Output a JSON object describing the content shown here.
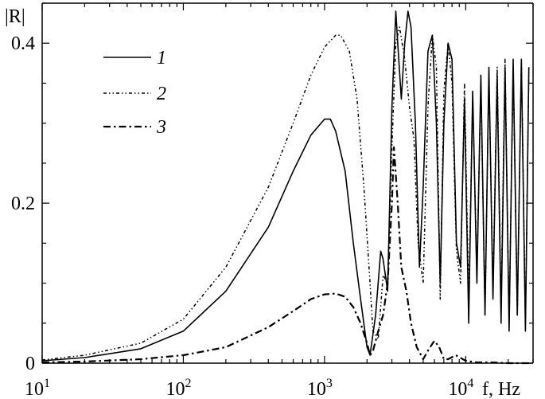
{
  "chart_data": {
    "type": "line",
    "title": "",
    "ylabel": "|R|",
    "xlabel": "f, Hz",
    "xscale": "log",
    "xlim": [
      10,
      30000
    ],
    "ylim": [
      0,
      0.45
    ],
    "grid": false,
    "legend_position": "top-left",
    "x_ticks": [
      {
        "base": "10",
        "exp": "1"
      },
      {
        "base": "10",
        "exp": "2"
      },
      {
        "base": "10",
        "exp": "3"
      },
      {
        "base": "10",
        "exp": "4"
      }
    ],
    "y_ticks": [
      "0",
      "0.2",
      "0.4"
    ],
    "series": [
      {
        "name": "1",
        "style": "solid",
        "x": [
          10,
          20,
          50,
          100,
          200,
          400,
          600,
          800,
          1000,
          1100,
          1200,
          1400,
          1600,
          1800,
          2000,
          2100,
          2300,
          2500,
          2600,
          2800,
          3000,
          3200,
          3300,
          3500,
          3700,
          3900,
          4100,
          4400,
          4700,
          5000,
          5400,
          5800,
          6200,
          6600,
          7000,
          7500,
          8000,
          8600,
          9200,
          9800,
          10500,
          11200,
          12000,
          12800,
          13700,
          14600,
          15600,
          16700,
          17800,
          19000,
          20300,
          21700,
          23200,
          24800,
          26500,
          28000
        ],
        "y": [
          0.003,
          0.007,
          0.018,
          0.04,
          0.09,
          0.17,
          0.24,
          0.285,
          0.305,
          0.305,
          0.29,
          0.24,
          0.15,
          0.08,
          0.02,
          0.01,
          0.06,
          0.14,
          0.13,
          0.09,
          0.32,
          0.44,
          0.4,
          0.33,
          0.4,
          0.44,
          0.42,
          0.3,
          0.12,
          0.22,
          0.39,
          0.41,
          0.3,
          0.1,
          0.3,
          0.4,
          0.38,
          0.15,
          0.12,
          0.33,
          0.05,
          0.34,
          0.1,
          0.36,
          0.06,
          0.37,
          0.08,
          0.36,
          0.05,
          0.37,
          0.04,
          0.38,
          0.06,
          0.38,
          0.04,
          0.37
        ]
      },
      {
        "name": "2",
        "style": "dash-dot-dot",
        "x": [
          10,
          20,
          50,
          100,
          200,
          400,
          600,
          800,
          1000,
          1200,
          1300,
          1500,
          1700,
          1900,
          2100,
          2200,
          2400,
          2600,
          2800,
          3000,
          3200,
          3400,
          3700,
          4000,
          4300,
          4600,
          5000,
          5400,
          5800,
          6200,
          6600,
          7000,
          7500,
          8000,
          8600,
          9200,
          9800,
          10500,
          11200,
          12000,
          12800,
          13700,
          14600,
          15600,
          16700,
          17800,
          19000,
          20300,
          21700,
          23200,
          24800,
          26500,
          28000
        ],
        "y": [
          0.004,
          0.01,
          0.025,
          0.055,
          0.12,
          0.22,
          0.3,
          0.36,
          0.395,
          0.41,
          0.41,
          0.39,
          0.33,
          0.22,
          0.1,
          0.04,
          0.03,
          0.11,
          0.1,
          0.27,
          0.4,
          0.42,
          0.38,
          0.32,
          0.28,
          0.15,
          0.1,
          0.32,
          0.41,
          0.37,
          0.08,
          0.34,
          0.4,
          0.35,
          0.14,
          0.1,
          0.35,
          0.08,
          0.33,
          0.12,
          0.35,
          0.06,
          0.36,
          0.09,
          0.37,
          0.07,
          0.38,
          0.05,
          0.37,
          0.06,
          0.38,
          0.05,
          0.37
        ]
      },
      {
        "name": "3",
        "style": "dash-dot",
        "x": [
          10,
          20,
          50,
          100,
          200,
          400,
          600,
          800,
          1000,
          1200,
          1400,
          1600,
          1800,
          2000,
          2100,
          2200,
          2400,
          2600,
          2800,
          3000,
          3100,
          3300,
          3500,
          3800,
          4100,
          4500,
          5000,
          5500,
          6000,
          6500,
          7000,
          7500,
          8500,
          10000,
          12000,
          15000,
          20000,
          28000
        ],
        "y": [
          0.001,
          0.002,
          0.005,
          0.01,
          0.02,
          0.045,
          0.065,
          0.08,
          0.086,
          0.087,
          0.083,
          0.07,
          0.05,
          0.025,
          0.01,
          0.015,
          0.04,
          0.06,
          0.1,
          0.2,
          0.27,
          0.2,
          0.12,
          0.09,
          0.05,
          0.02,
          0.005,
          0.018,
          0.028,
          0.02,
          0.005,
          0.005,
          0.01,
          0.003,
          0.001,
          0.001,
          0.0,
          0.0
        ]
      }
    ]
  }
}
